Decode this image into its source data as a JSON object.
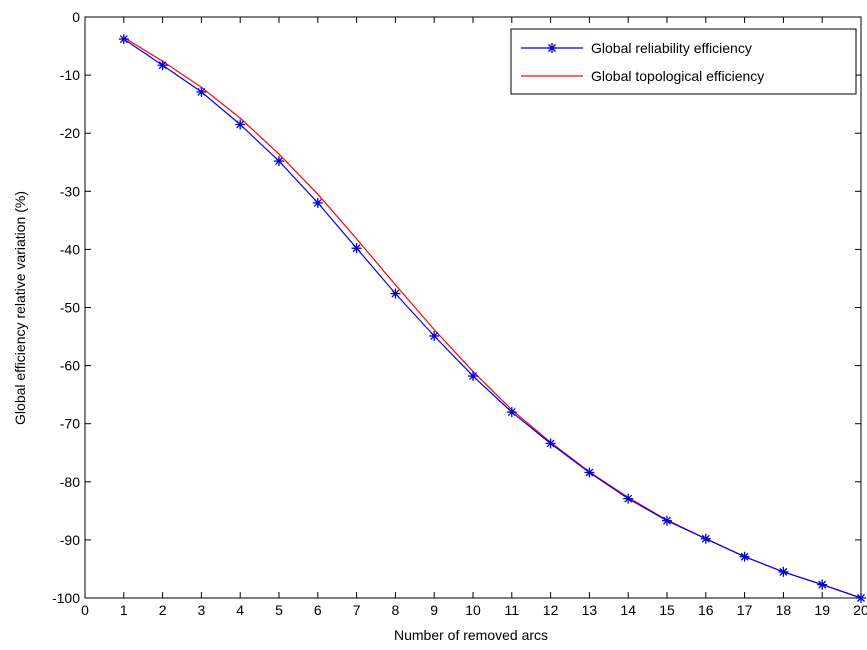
{
  "chart_data": {
    "type": "line",
    "title": "",
    "xlabel": "Number of removed arcs",
    "ylabel": "Global efficiency relative variation (%)",
    "xlim": [
      0,
      20
    ],
    "ylim": [
      -100,
      0
    ],
    "xticks": [
      0,
      1,
      2,
      3,
      4,
      5,
      6,
      7,
      8,
      9,
      10,
      11,
      12,
      13,
      14,
      15,
      16,
      17,
      18,
      19,
      20
    ],
    "yticks": [
      0,
      -10,
      -20,
      -30,
      -40,
      -50,
      -60,
      -70,
      -80,
      -90,
      -100
    ],
    "grid": false,
    "legend_position": "top-right",
    "x": [
      1,
      2,
      3,
      4,
      5,
      6,
      7,
      8,
      9,
      10,
      11,
      12,
      13,
      14,
      15,
      16,
      17,
      18,
      19,
      20
    ],
    "series": [
      {
        "name": "Global reliability efficiency",
        "color": "#0000ff",
        "marker": "asterisk",
        "marker_color": "#0000cc",
        "values": [
          -3.8,
          -8.3,
          -12.9,
          -18.5,
          -24.8,
          -32.0,
          -39.8,
          -47.6,
          -54.9,
          -61.8,
          -68.0,
          -73.4,
          -78.4,
          -82.9,
          -86.7,
          -89.8,
          -92.9,
          -95.5,
          -97.7,
          -100
        ]
      },
      {
        "name": "Global topological efficiency",
        "color": "#ff0000",
        "marker": "none",
        "values": [
          -3.5,
          -7.6,
          -12.1,
          -17.4,
          -23.6,
          -30.5,
          -38.2,
          -46.1,
          -53.8,
          -61.0,
          -67.6,
          -73.2,
          -78.3,
          -82.7,
          -86.6,
          -89.8,
          -92.9,
          -95.5,
          -97.7,
          -100
        ]
      }
    ]
  }
}
